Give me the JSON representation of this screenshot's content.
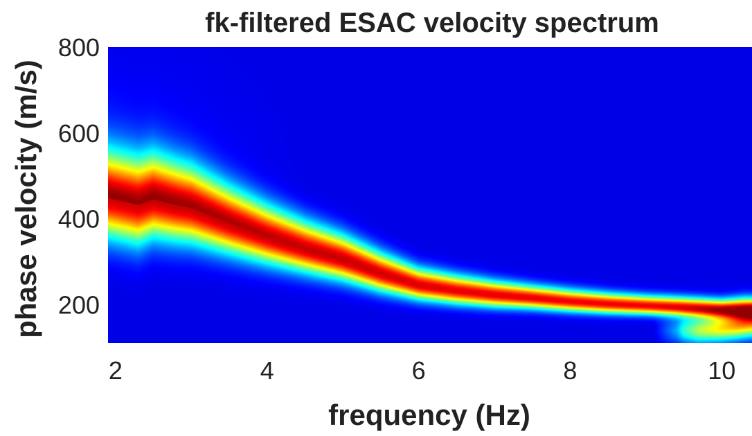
{
  "chart_data": {
    "type": "heatmap",
    "title": "fk-filtered ESAC velocity spectrum",
    "xlabel": "frequency (Hz)",
    "ylabel": "phase velocity (m/s)",
    "xlim": [
      1.9,
      10.4
    ],
    "ylim": [
      110,
      800
    ],
    "xticks": [
      2,
      4,
      6,
      8,
      10
    ],
    "yticks": [
      200,
      400,
      600,
      800
    ],
    "colormap": "jet",
    "background_color": "#00008f",
    "grid": false,
    "ridge": {
      "name": "",
      "frequency": [
        1.9,
        2.1,
        2.3,
        2.5,
        2.8,
        3.0,
        3.5,
        4.0,
        4.5,
        5.0,
        5.5,
        6.0,
        6.5,
        7.0,
        7.5,
        8.0,
        8.5,
        9.0,
        9.5,
        10.0,
        10.3
      ],
      "phase_velocity": [
        448,
        440,
        432,
        445,
        432,
        425,
        390,
        358,
        330,
        305,
        272,
        245,
        232,
        222,
        215,
        207,
        201,
        197,
        193,
        188,
        188
      ],
      "relative_amplitude": [
        0.82,
        0.82,
        0.82,
        0.83,
        0.83,
        0.83,
        0.83,
        0.83,
        0.83,
        0.83,
        0.82,
        0.81,
        0.8,
        0.8,
        0.8,
        0.79,
        0.79,
        0.79,
        0.8,
        0.82,
        0.83
      ],
      "width_mps": [
        62,
        62,
        62,
        60,
        57,
        55,
        48,
        42,
        37,
        33,
        28,
        23,
        21,
        19,
        17,
        16,
        15,
        14,
        14,
        14,
        16
      ]
    },
    "secondary_energy": {
      "name": "",
      "frequency": [
        9.4,
        9.7,
        10.0,
        10.2,
        10.4
      ],
      "phase_velocity": [
        140,
        140,
        145,
        150,
        155
      ],
      "relative_amplitude": [
        0.25,
        0.45,
        0.55,
        0.6,
        0.6
      ]
    }
  }
}
